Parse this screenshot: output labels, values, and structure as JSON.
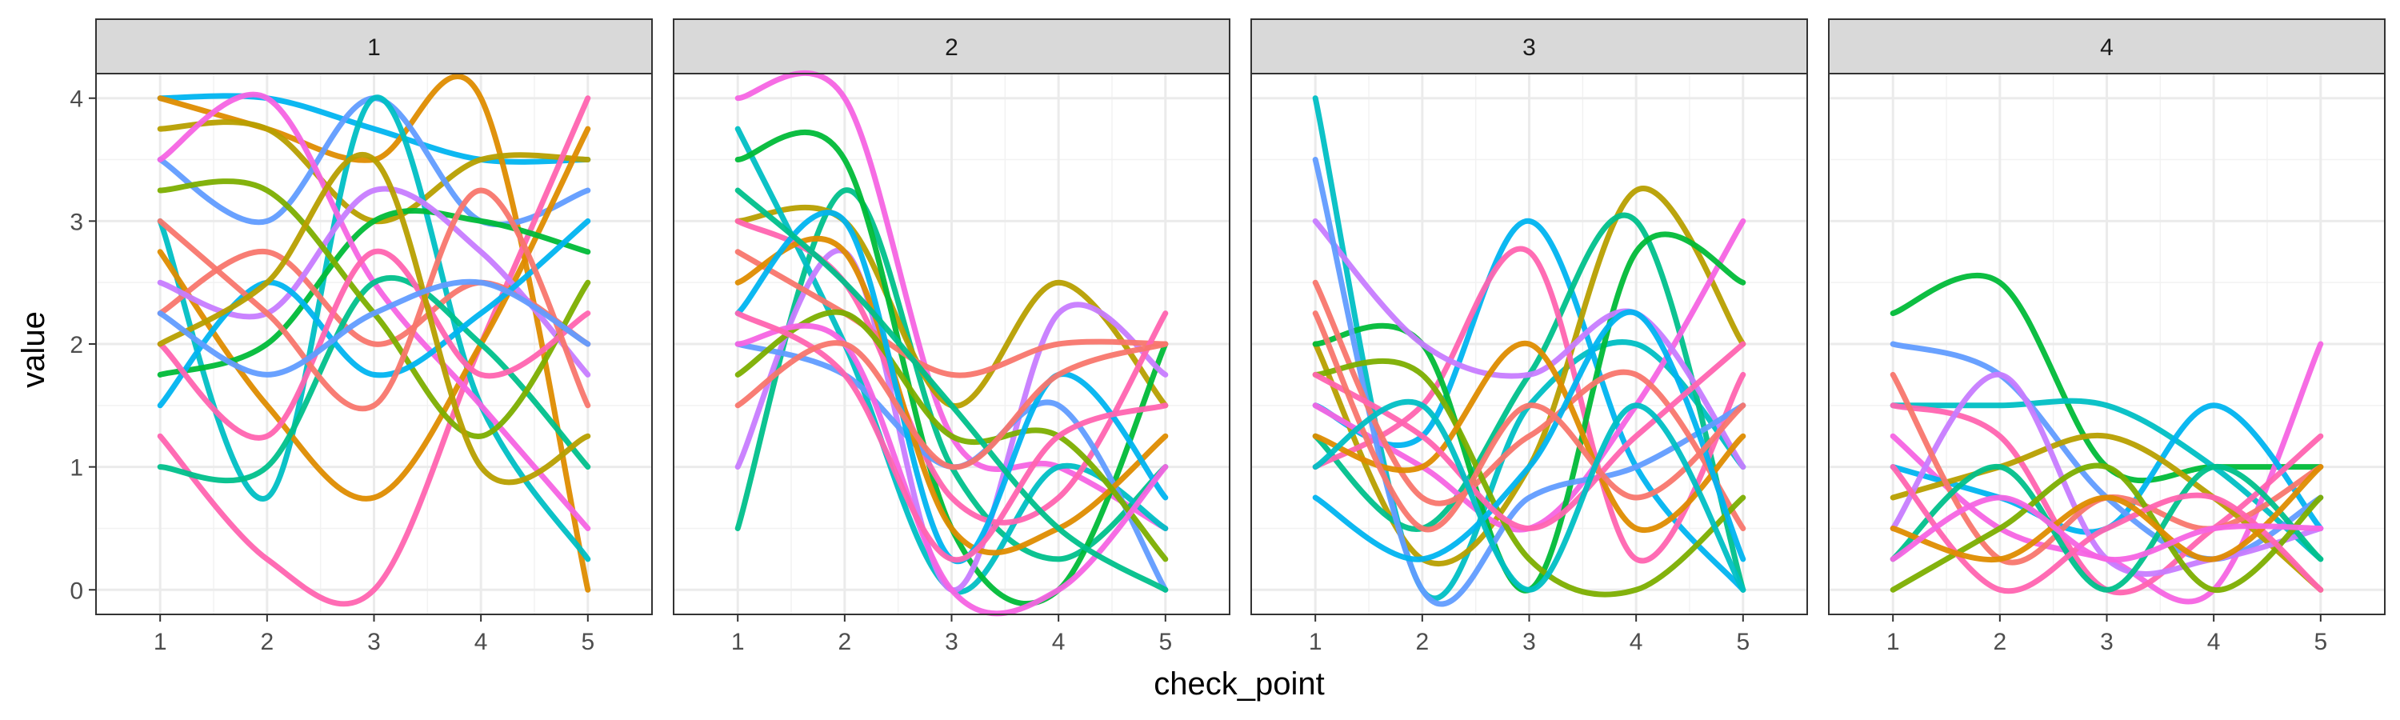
{
  "chart_data": {
    "type": "line",
    "facet_variable": "check_point facet",
    "xlabel": "check_point",
    "ylabel": "value",
    "x_ticks": [
      1,
      2,
      3,
      4,
      5
    ],
    "y_ticks": [
      0,
      1,
      2,
      3,
      4
    ],
    "xlim": [
      0.4,
      5.6
    ],
    "ylim": [
      -0.2,
      4.2
    ],
    "grid": true,
    "legend": "none",
    "palette": [
      "#F8766D",
      "#DE8C00",
      "#B79F00",
      "#7CAE00",
      "#00BA38",
      "#00C08B",
      "#00BFC4",
      "#00B4F0",
      "#619CFF",
      "#C77CFF",
      "#F564E3",
      "#FF64B0"
    ],
    "panels": [
      {
        "label": "1",
        "series": [
          {
            "color": "#00B4F0",
            "values": [
              4.0,
              4.0,
              3.75,
              3.5,
              3.5
            ]
          },
          {
            "color": "#DE8C00",
            "values": [
              4.0,
              3.75,
              3.5,
              4.0,
              0.0
            ]
          },
          {
            "color": "#B79F00",
            "values": [
              3.75,
              3.75,
              3.0,
              3.5,
              3.5
            ]
          },
          {
            "color": "#619CFF",
            "values": [
              3.5,
              3.0,
              4.0,
              3.0,
              3.25
            ]
          },
          {
            "color": "#FF64B0",
            "values": [
              1.25,
              0.25,
              0.0,
              2.0,
              4.0
            ]
          },
          {
            "color": "#00BFC4",
            "values": [
              3.0,
              0.75,
              4.0,
              1.5,
              0.25
            ]
          },
          {
            "color": "#DE8C00",
            "values": [
              2.75,
              1.5,
              0.75,
              2.0,
              3.75
            ]
          },
          {
            "color": "#00BA38",
            "values": [
              1.75,
              2.0,
              3.0,
              3.0,
              2.75
            ]
          },
          {
            "color": "#F564E3",
            "values": [
              3.5,
              4.0,
              2.5,
              1.5,
              0.5
            ]
          },
          {
            "color": "#F8766D",
            "values": [
              2.25,
              2.75,
              2.0,
              2.5,
              2.0
            ]
          },
          {
            "color": "#00C08B",
            "values": [
              1.0,
              1.0,
              2.5,
              2.0,
              1.0
            ]
          },
          {
            "color": "#C77CFF",
            "values": [
              2.5,
              2.25,
              3.25,
              2.75,
              1.75
            ]
          },
          {
            "color": "#7CAE00",
            "values": [
              3.25,
              3.25,
              2.25,
              1.25,
              2.5
            ]
          },
          {
            "color": "#00B4F0",
            "values": [
              1.5,
              2.5,
              1.75,
              2.25,
              3.0
            ]
          },
          {
            "color": "#FF64B0",
            "values": [
              2.0,
              1.25,
              2.75,
              1.75,
              2.25
            ]
          },
          {
            "color": "#F8766D",
            "values": [
              3.0,
              2.25,
              1.5,
              3.25,
              1.5
            ]
          },
          {
            "color": "#B79F00",
            "values": [
              2.0,
              2.5,
              3.5,
              1.0,
              1.25
            ]
          },
          {
            "color": "#619CFF",
            "values": [
              2.25,
              1.75,
              2.25,
              2.5,
              2.0
            ]
          }
        ]
      },
      {
        "label": "2",
        "series": [
          {
            "color": "#F564E3",
            "values": [
              4.0,
              4.0,
              1.25,
              1.0,
              0.5
            ]
          },
          {
            "color": "#00C08B",
            "values": [
              0.5,
              3.25,
              1.0,
              0.25,
              1.0
            ]
          },
          {
            "color": "#B79F00",
            "values": [
              3.0,
              3.0,
              1.5,
              2.5,
              1.5
            ]
          },
          {
            "color": "#00BFC4",
            "values": [
              3.75,
              2.0,
              0.0,
              1.0,
              0.5
            ]
          },
          {
            "color": "#00BA38",
            "values": [
              3.5,
              3.5,
              0.5,
              0.0,
              2.0
            ]
          },
          {
            "color": "#C77CFF",
            "values": [
              1.0,
              2.75,
              0.0,
              2.25,
              1.75
            ]
          },
          {
            "color": "#F8766D",
            "values": [
              2.75,
              2.25,
              1.75,
              2.0,
              2.0
            ]
          },
          {
            "color": "#FF64B0",
            "values": [
              3.0,
              2.5,
              0.75,
              0.75,
              2.25
            ]
          },
          {
            "color": "#619CFF",
            "values": [
              2.0,
              1.75,
              1.0,
              1.5,
              0.0
            ]
          },
          {
            "color": "#DE8C00",
            "values": [
              2.5,
              2.75,
              0.5,
              0.5,
              1.25
            ]
          },
          {
            "color": "#7CAE00",
            "values": [
              1.75,
              2.25,
              1.25,
              1.25,
              0.25
            ]
          },
          {
            "color": "#00B4F0",
            "values": [
              2.25,
              3.0,
              0.25,
              1.75,
              0.75
            ]
          },
          {
            "color": "#F564E3",
            "values": [
              2.0,
              2.0,
              0.0,
              0.0,
              1.0
            ]
          },
          {
            "color": "#00C08B",
            "values": [
              3.25,
              2.5,
              1.5,
              0.5,
              0.0
            ]
          },
          {
            "color": "#FF64B0",
            "values": [
              2.25,
              1.75,
              0.25,
              1.25,
              1.5
            ]
          },
          {
            "color": "#F8766D",
            "values": [
              1.5,
              2.0,
              1.0,
              1.75,
              2.0
            ]
          }
        ]
      },
      {
        "label": "3",
        "series": [
          {
            "color": "#00BFC4",
            "values": [
              4.0,
              0.0,
              1.5,
              2.0,
              1.0
            ]
          },
          {
            "color": "#00B4F0",
            "values": [
              1.5,
              1.25,
              3.0,
              1.0,
              0.0
            ]
          },
          {
            "color": "#B79F00",
            "values": [
              2.0,
              0.25,
              1.0,
              3.25,
              2.0
            ]
          },
          {
            "color": "#00C08B",
            "values": [
              1.25,
              0.5,
              1.75,
              3.0,
              0.0
            ]
          },
          {
            "color": "#F564E3",
            "values": [
              1.5,
              1.0,
              0.5,
              1.5,
              3.0
            ]
          },
          {
            "color": "#FF64B0",
            "values": [
              1.0,
              1.5,
              2.75,
              0.25,
              1.75
            ]
          },
          {
            "color": "#00BA38",
            "values": [
              2.0,
              2.0,
              0.0,
              2.75,
              2.5
            ]
          },
          {
            "color": "#C77CFF",
            "values": [
              3.0,
              2.0,
              1.75,
              2.25,
              1.0
            ]
          },
          {
            "color": "#619CFF",
            "values": [
              3.5,
              0.0,
              0.75,
              1.0,
              1.5
            ]
          },
          {
            "color": "#F8766D",
            "values": [
              2.5,
              0.75,
              1.25,
              1.75,
              0.5
            ]
          },
          {
            "color": "#7CAE00",
            "values": [
              1.75,
              1.75,
              0.25,
              0.0,
              0.75
            ]
          },
          {
            "color": "#DE8C00",
            "values": [
              1.25,
              1.0,
              2.0,
              0.5,
              1.25
            ]
          },
          {
            "color": "#00B4F0",
            "values": [
              0.75,
              0.25,
              1.0,
              2.25,
              0.25
            ]
          },
          {
            "color": "#FF64B0",
            "values": [
              1.75,
              1.25,
              0.5,
              1.25,
              2.0
            ]
          },
          {
            "color": "#F8766D",
            "values": [
              2.25,
              0.5,
              1.5,
              0.75,
              1.5
            ]
          },
          {
            "color": "#00BFC4",
            "values": [
              1.0,
              1.5,
              0.0,
              1.5,
              0.0
            ]
          }
        ]
      },
      {
        "label": "4",
        "series": [
          {
            "color": "#00BA38",
            "values": [
              2.25,
              2.5,
              1.0,
              1.0,
              1.0
            ]
          },
          {
            "color": "#00BFC4",
            "values": [
              1.5,
              1.5,
              1.5,
              1.0,
              0.25
            ]
          },
          {
            "color": "#F564E3",
            "values": [
              1.25,
              0.5,
              0.25,
              0.0,
              2.0
            ]
          },
          {
            "color": "#00B4F0",
            "values": [
              1.0,
              0.75,
              0.5,
              1.5,
              0.5
            ]
          },
          {
            "color": "#619CFF",
            "values": [
              2.0,
              1.75,
              0.75,
              0.25,
              0.75
            ]
          },
          {
            "color": "#FF64B0",
            "values": [
              1.5,
              1.25,
              0.0,
              0.5,
              1.25
            ]
          },
          {
            "color": "#B79F00",
            "values": [
              0.75,
              1.0,
              1.25,
              0.75,
              0.0
            ]
          },
          {
            "color": "#C77CFF",
            "values": [
              0.5,
              1.75,
              0.25,
              0.25,
              0.5
            ]
          },
          {
            "color": "#F8766D",
            "values": [
              1.75,
              0.25,
              0.75,
              0.5,
              1.0
            ]
          },
          {
            "color": "#00C08B",
            "values": [
              0.25,
              1.0,
              0.0,
              1.0,
              0.25
            ]
          },
          {
            "color": "#7CAE00",
            "values": [
              0.0,
              0.5,
              1.0,
              0.0,
              0.75
            ]
          },
          {
            "color": "#FF64B0",
            "values": [
              1.0,
              0.0,
              0.5,
              0.75,
              0.0
            ]
          },
          {
            "color": "#DE8C00",
            "values": [
              0.5,
              0.25,
              0.75,
              0.25,
              1.0
            ]
          },
          {
            "color": "#F564E3",
            "values": [
              0.25,
              0.75,
              0.25,
              0.5,
              0.5
            ]
          }
        ]
      }
    ]
  }
}
